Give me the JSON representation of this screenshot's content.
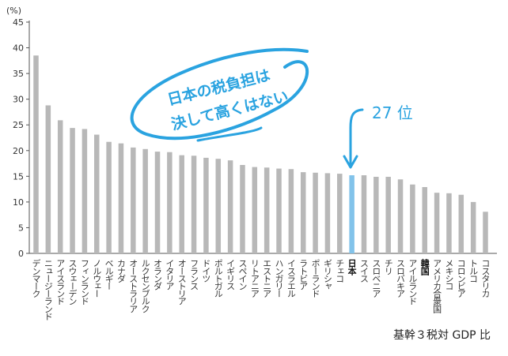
{
  "chart_data": {
    "type": "bar",
    "ylabel": "(%)",
    "ylim": [
      0,
      45
    ],
    "yticks": [
      0,
      5,
      10,
      15,
      20,
      25,
      30,
      35,
      40,
      45
    ],
    "grid": false,
    "categories": [
      "デンマーク",
      "ニュージーランド",
      "アイスランド",
      "スウェーデン",
      "フィンランド",
      "ノルウェー",
      "ベルギー",
      "カナダ",
      "オーストラリア",
      "ルクセンブルク",
      "オランダ",
      "イタリア",
      "オーストリア",
      "フランス",
      "ドイツ",
      "ポルトガル",
      "イギリス",
      "スペイン",
      "リトアニア",
      "エストニア",
      "ハンガリー",
      "イスラエル",
      "ラトビア",
      "ポーランド",
      "ギリシャ",
      "チェコ",
      "日本",
      "スイス",
      "スロベニア",
      "チリ",
      "スロバキア",
      "アイルランド",
      "韓国",
      "アメリカ合衆国",
      "メキシコ",
      "コロンビア",
      "トルコ",
      "コスタリカ"
    ],
    "values": [
      38.5,
      28.8,
      25.9,
      24.4,
      24.2,
      23.1,
      21.7,
      21.4,
      20.6,
      20.3,
      19.8,
      19.7,
      19.1,
      19.0,
      18.6,
      18.4,
      18.1,
      17.2,
      16.8,
      16.7,
      16.5,
      16.4,
      15.8,
      15.7,
      15.6,
      15.5,
      15.2,
      15.2,
      14.9,
      14.9,
      14.4,
      13.4,
      12.9,
      11.8,
      11.7,
      11.4,
      10.0,
      8.1
    ],
    "highlight_category": "日本",
    "highlight_color": "#82c3ea",
    "bar_color": "#b8b8b8",
    "bold_categories": [
      "日本",
      "韓国"
    ],
    "annotations": {
      "bubble_line1": "日本の税負担は",
      "bubble_line2": "決して高くはない",
      "rank_label": "27 位",
      "accent_color": "#2aa3e0"
    },
    "footer": "基幹３税対 GDP 比"
  }
}
